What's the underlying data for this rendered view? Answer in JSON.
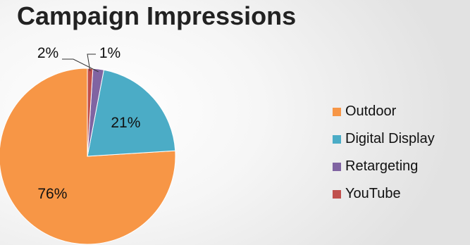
{
  "chart_data": {
    "type": "pie",
    "title": "Campaign Impressions",
    "legend_position": "right",
    "slices": [
      {
        "label": "Outdoor",
        "value": 76,
        "display": "76%",
        "color": "#f79646"
      },
      {
        "label": "Digital Display",
        "value": 21,
        "display": "21%",
        "color": "#4bacc6"
      },
      {
        "label": "Retargeting",
        "value": 2,
        "display": "2%",
        "color": "#8064a2"
      },
      {
        "label": "YouTube",
        "value": 1,
        "display": "1%",
        "color": "#c0504d"
      }
    ]
  }
}
